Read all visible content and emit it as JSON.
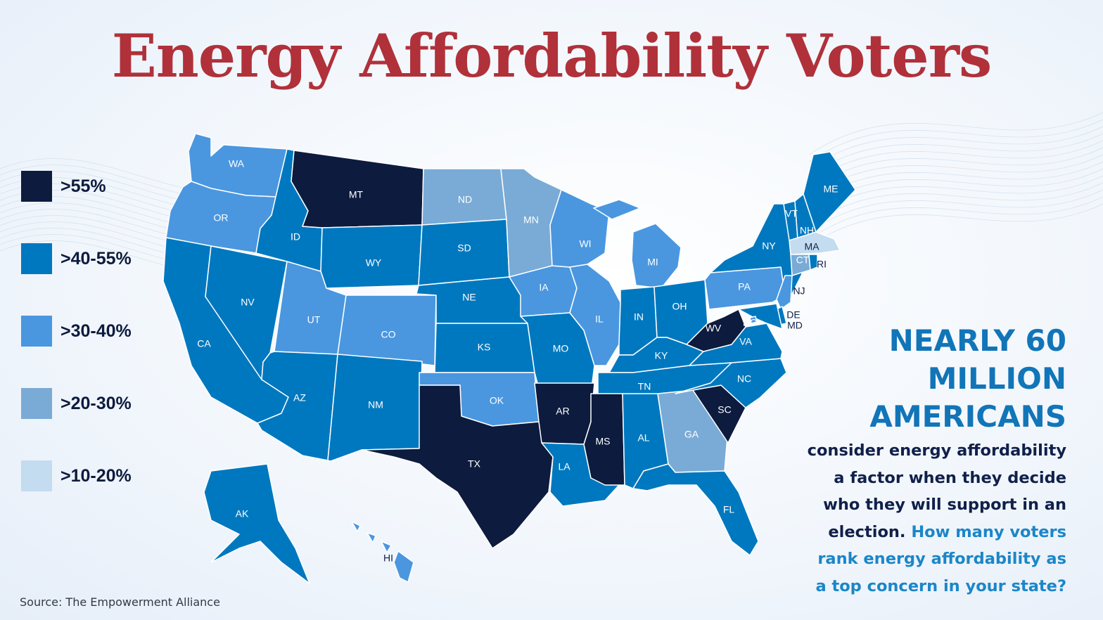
{
  "title": "Energy Affordability Voters",
  "legend": [
    {
      "label": ">55%",
      "color": "#0d1b3e"
    },
    {
      "label": ">40-55%",
      "color": "#0078bf"
    },
    {
      "label": ">30-40%",
      "color": "#4a97e0"
    },
    {
      "label": ">20-30%",
      "color": "#7aabd6"
    },
    {
      "label": ">10-20%",
      "color": "#c3dcef"
    }
  ],
  "states": {
    "WA": {
      "label": "WA",
      "tier": 2
    },
    "OR": {
      "label": "OR",
      "tier": 2
    },
    "CA": {
      "label": "CA",
      "tier": 1
    },
    "NV": {
      "label": "NV",
      "tier": 1
    },
    "ID": {
      "label": "ID",
      "tier": 1
    },
    "MT": {
      "label": "MT",
      "tier": 0
    },
    "WY": {
      "label": "WY",
      "tier": 1
    },
    "UT": {
      "label": "UT",
      "tier": 2
    },
    "AZ": {
      "label": "AZ",
      "tier": 1
    },
    "CO": {
      "label": "CO",
      "tier": 2
    },
    "NM": {
      "label": "NM",
      "tier": 1
    },
    "ND": {
      "label": "ND",
      "tier": 3
    },
    "SD": {
      "label": "SD",
      "tier": 1
    },
    "NE": {
      "label": "NE",
      "tier": 1
    },
    "KS": {
      "label": "KS",
      "tier": 1
    },
    "OK": {
      "label": "OK",
      "tier": 2
    },
    "TX": {
      "label": "TX",
      "tier": 0
    },
    "MN": {
      "label": "MN",
      "tier": 3
    },
    "IA": {
      "label": "IA",
      "tier": 2
    },
    "MO": {
      "label": "MO",
      "tier": 1
    },
    "AR": {
      "label": "AR",
      "tier": 0
    },
    "LA": {
      "label": "LA",
      "tier": 1
    },
    "WI": {
      "label": "WI",
      "tier": 2
    },
    "IL": {
      "label": "IL",
      "tier": 2
    },
    "MI": {
      "label": "MI",
      "tier": 2
    },
    "IN": {
      "label": "IN",
      "tier": 1
    },
    "OH": {
      "label": "OH",
      "tier": 1
    },
    "KY": {
      "label": "KY",
      "tier": 1
    },
    "TN": {
      "label": "TN",
      "tier": 1
    },
    "MS": {
      "label": "MS",
      "tier": 0
    },
    "AL": {
      "label": "AL",
      "tier": 1
    },
    "GA": {
      "label": "GA",
      "tier": 3
    },
    "FL": {
      "label": "FL",
      "tier": 1
    },
    "SC": {
      "label": "SC",
      "tier": 0
    },
    "NC": {
      "label": "NC",
      "tier": 1
    },
    "VA": {
      "label": "VA",
      "tier": 1
    },
    "WV": {
      "label": "WV",
      "tier": 0
    },
    "PA": {
      "label": "PA",
      "tier": 2
    },
    "NY": {
      "label": "NY",
      "tier": 1
    },
    "VT": {
      "label": "VT",
      "tier": 1
    },
    "NH": {
      "label": "NH",
      "tier": 1
    },
    "ME": {
      "label": "ME",
      "tier": 1
    },
    "MA": {
      "label": "MA",
      "tier": 4
    },
    "CT": {
      "label": "CT",
      "tier": 3
    },
    "RI": {
      "label": "RI",
      "tier": 1
    },
    "NJ": {
      "label": "NJ",
      "tier": 2
    },
    "DE": {
      "label": "DE",
      "tier": 1
    },
    "MD": {
      "label": "MD",
      "tier": 1
    },
    "DC": {
      "label": "DC",
      "tier": 2
    },
    "AK": {
      "label": "AK",
      "tier": 1
    },
    "HI": {
      "label": "HI",
      "tier": 2
    }
  },
  "headline": {
    "line1": "NEARLY 60",
    "line2": "MILLION",
    "line3": "AMERICANS"
  },
  "body": {
    "line1": "consider energy affordability",
    "line2": "a factor when they decide",
    "line3": "who they will support in an",
    "line4a": "election.",
    "line4b": "How many voters",
    "line5": "rank energy affordability as",
    "line6": "a top concern in your state?"
  },
  "source": "Source: The Empowerment Alliance"
}
